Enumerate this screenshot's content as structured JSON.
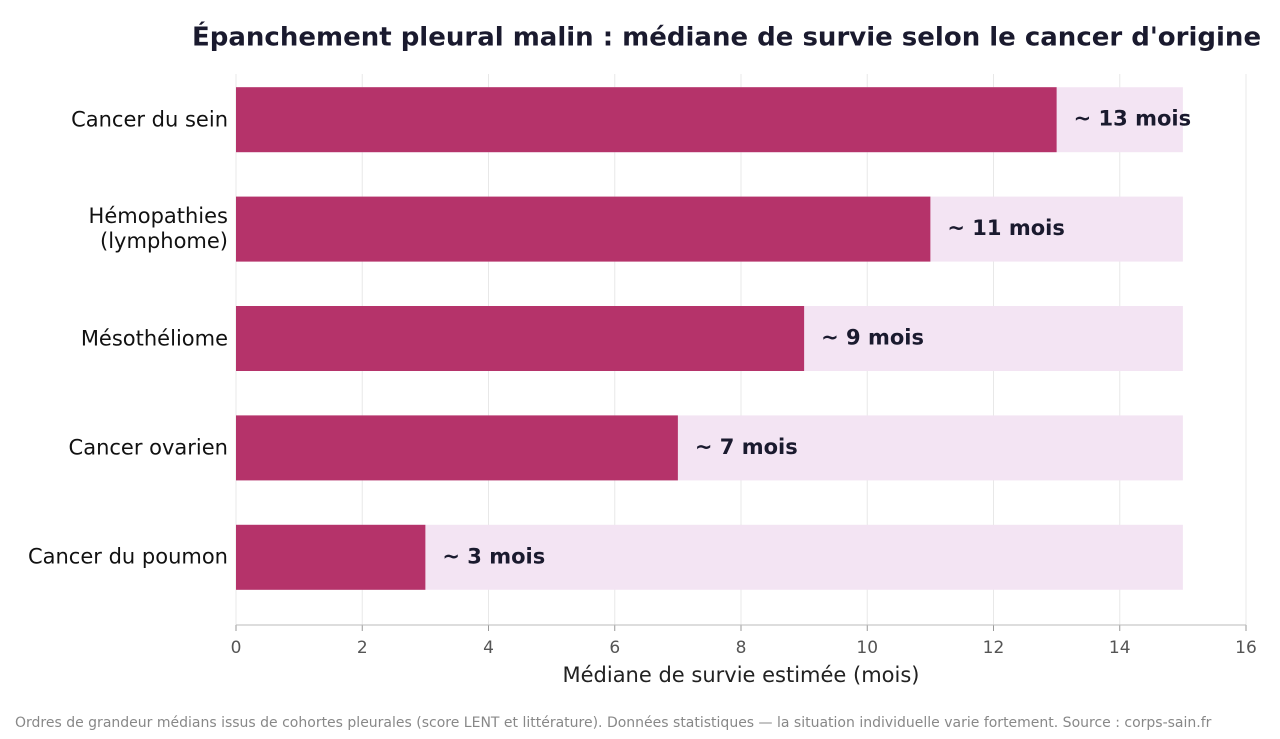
{
  "chart_data": {
    "type": "hbar",
    "title": "Épanchement pleural malin : médiane de survie selon le cancer d'origine",
    "x_label": "Médiane de survie estimée (mois)",
    "footnote": "Ordres de grandeur médians issus de cohortes pleurales (score LENT et littérature). Données statistiques — la situation individuelle varie fortement. Source : corps-sain.fr",
    "categories": [
      "Cancer du sein",
      "Hémopathies\n(lymphome)",
      "Mésothéliome",
      "Cancer ovarien",
      "Cancer du poumon"
    ],
    "values": [
      13,
      11,
      9,
      7,
      3
    ],
    "value_labels": [
      "~ 13 mois",
      "~ 11 mois",
      "~ 9 mois",
      "~ 7 mois",
      "~ 3 mois"
    ],
    "background_values": [
      15,
      15,
      15,
      15,
      15
    ],
    "color": "#b5336a",
    "background_color": "#f3e4f3",
    "xlim": [
      0,
      16
    ],
    "xticks": [
      0,
      2,
      4,
      6,
      8,
      10,
      12,
      14,
      16
    ],
    "grid": true
  }
}
